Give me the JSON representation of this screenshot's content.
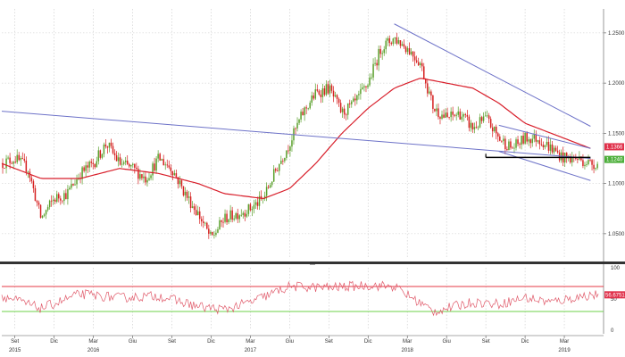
{
  "colors": {
    "up": "#5aa02c",
    "down": "#d62020",
    "ma": "#d81e2a",
    "trend": "#6d72c8",
    "channel": "#6d72c8",
    "support": "#000000",
    "grid": "#c9c9c9",
    "rsi": "#e05a6a",
    "rsi_upper": "#e63946",
    "rsi_lower": "#6cd04a",
    "divider": "#333333",
    "label_red": "#e0304a",
    "label_green": "#4caf3a"
  },
  "chart_data": [
    {
      "type": "candlestick",
      "title": "",
      "y_ticks": [
        "1.2500",
        "1.2000",
        "1.1500",
        "1.1000",
        "1.0500"
      ],
      "y_range": [
        1.025,
        1.265
      ],
      "x_range": [
        "2015-08",
        "2019-06"
      ],
      "grid": true,
      "series": [
        {
          "name": "",
          "role": "price",
          "points": [
            [
              "2015-08",
              1.12
            ],
            [
              "2015-09",
              1.125
            ],
            [
              "2015-10",
              1.115
            ],
            [
              "2015-11",
              1.065
            ],
            [
              "2015-12",
              1.085
            ],
            [
              "2016-01",
              1.09
            ],
            [
              "2016-02",
              1.11
            ],
            [
              "2016-03",
              1.12
            ],
            [
              "2016-04",
              1.14
            ],
            [
              "2016-05",
              1.12
            ],
            [
              "2016-06",
              1.115
            ],
            [
              "2016-07",
              1.105
            ],
            [
              "2016-08",
              1.125
            ],
            [
              "2016-09",
              1.115
            ],
            [
              "2016-10",
              1.09
            ],
            [
              "2016-11",
              1.07
            ],
            [
              "2016-12",
              1.045
            ],
            [
              "2017-01",
              1.065
            ],
            [
              "2017-02",
              1.07
            ],
            [
              "2017-03",
              1.075
            ],
            [
              "2017-04",
              1.085
            ],
            [
              "2017-05",
              1.115
            ],
            [
              "2017-06",
              1.14
            ],
            [
              "2017-07",
              1.17
            ],
            [
              "2017-08",
              1.19
            ],
            [
              "2017-09",
              1.195
            ],
            [
              "2017-10",
              1.17
            ],
            [
              "2017-11",
              1.18
            ],
            [
              "2017-12",
              1.2
            ],
            [
              "2018-01",
              1.235
            ],
            [
              "2018-02",
              1.245
            ],
            [
              "2018-03",
              1.235
            ],
            [
              "2018-04",
              1.22
            ],
            [
              "2018-05",
              1.175
            ],
            [
              "2018-06",
              1.165
            ],
            [
              "2018-07",
              1.17
            ],
            [
              "2018-08",
              1.155
            ],
            [
              "2018-09",
              1.165
            ],
            [
              "2018-10",
              1.145
            ],
            [
              "2018-11",
              1.135
            ],
            [
              "2018-12",
              1.145
            ],
            [
              "2019-01",
              1.145
            ],
            [
              "2019-02",
              1.135
            ],
            [
              "2019-03",
              1.125
            ],
            [
              "2019-04",
              1.125
            ],
            [
              "2019-05",
              1.12
            ]
          ]
        },
        {
          "name": "",
          "role": "moving-average",
          "points": [
            [
              "2015-08",
              1.12
            ],
            [
              "2015-11",
              1.105
            ],
            [
              "2016-02",
              1.105
            ],
            [
              "2016-05",
              1.115
            ],
            [
              "2016-08",
              1.11
            ],
            [
              "2016-11",
              1.1
            ],
            [
              "2017-01",
              1.09
            ],
            [
              "2017-04",
              1.085
            ],
            [
              "2017-06",
              1.095
            ],
            [
              "2017-08",
              1.12
            ],
            [
              "2017-10",
              1.15
            ],
            [
              "2017-12",
              1.175
            ],
            [
              "2018-02",
              1.195
            ],
            [
              "2018-04",
              1.205
            ],
            [
              "2018-06",
              1.2
            ],
            [
              "2018-08",
              1.195
            ],
            [
              "2018-10",
              1.18
            ],
            [
              "2018-12",
              1.16
            ],
            [
              "2019-02",
              1.15
            ],
            [
              "2019-05",
              1.135
            ]
          ]
        }
      ],
      "trendlines": [
        {
          "points": [
            [
              "2015-08",
              1.172
            ],
            [
              "2019-05",
              1.125
            ]
          ]
        },
        {
          "points": [
            [
              "2018-02",
              1.259
            ],
            [
              "2019-05",
              1.157
            ]
          ]
        },
        {
          "points": [
            [
              "2018-10",
              1.158
            ],
            [
              "2019-05",
              1.135
            ]
          ]
        },
        {
          "points": [
            [
              "2018-10",
              1.132
            ],
            [
              "2019-05",
              1.103
            ]
          ]
        }
      ],
      "support_line": {
        "y": 1.126,
        "from": "2018-09",
        "to": "2019-05"
      },
      "last_labels": [
        {
          "text": "1.1366",
          "color": "#e0304a"
        },
        {
          "text": "1.1240",
          "color": "#4caf3a"
        }
      ],
      "watermark": "—"
    },
    {
      "type": "line",
      "title": "",
      "y_ticks": [
        "100",
        "50",
        "0"
      ],
      "y_range": [
        0,
        100
      ],
      "reference_lines": [
        70,
        30
      ],
      "last_label": {
        "text": "56.6751",
        "color": "#e0304a"
      },
      "series": [
        {
          "name": "",
          "points": [
            [
              "2015-08",
              55
            ],
            [
              "2015-11",
              35
            ],
            [
              "2016-02",
              58
            ],
            [
              "2016-05",
              52
            ],
            [
              "2016-08",
              55
            ],
            [
              "2016-11",
              38
            ],
            [
              "2017-01",
              33
            ],
            [
              "2017-03",
              45
            ],
            [
              "2017-06",
              70
            ],
            [
              "2017-09",
              68
            ],
            [
              "2017-12",
              72
            ],
            [
              "2018-02",
              70
            ],
            [
              "2018-05",
              30
            ],
            [
              "2018-08",
              45
            ],
            [
              "2018-10",
              42
            ],
            [
              "2018-12",
              52
            ],
            [
              "2019-02",
              45
            ],
            [
              "2019-05",
              56.6751
            ]
          ]
        }
      ]
    }
  ],
  "x_axis": {
    "month_ticks": [
      {
        "label": "Set",
        "date": "2015-09"
      },
      {
        "label": "Dic",
        "date": "2015-12"
      },
      {
        "label": "Mar",
        "date": "2016-03"
      },
      {
        "label": "Giu",
        "date": "2016-06"
      },
      {
        "label": "Set",
        "date": "2016-09"
      },
      {
        "label": "Dic",
        "date": "2016-12"
      },
      {
        "label": "Mar",
        "date": "2017-03"
      },
      {
        "label": "Giu",
        "date": "2017-06"
      },
      {
        "label": "Set",
        "date": "2017-09"
      },
      {
        "label": "Dic",
        "date": "2017-12"
      },
      {
        "label": "Mar",
        "date": "2018-03"
      },
      {
        "label": "Giu",
        "date": "2018-06"
      },
      {
        "label": "Set",
        "date": "2018-09"
      },
      {
        "label": "Dic",
        "date": "2018-12"
      },
      {
        "label": "Mar",
        "date": "2019-03"
      }
    ],
    "year_labels": [
      {
        "label": "2015",
        "date": "2015-09"
      },
      {
        "label": "2016",
        "date": "2016-03"
      },
      {
        "label": "2017",
        "date": "2017-03"
      },
      {
        "label": "2018",
        "date": "2018-03"
      },
      {
        "label": "2019",
        "date": "2019-03"
      }
    ]
  }
}
